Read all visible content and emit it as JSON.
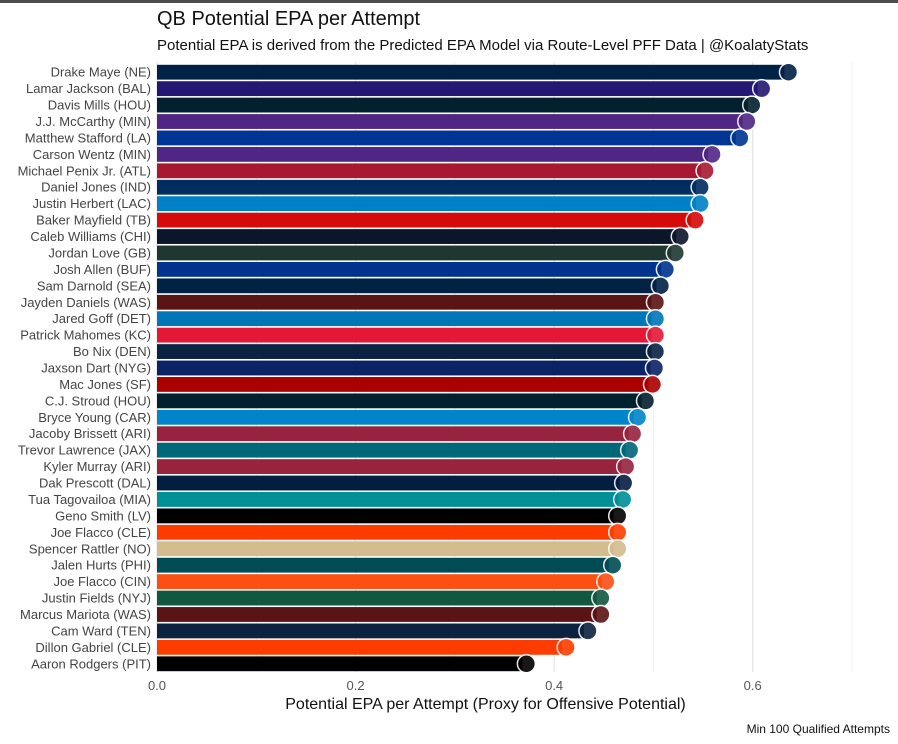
{
  "chart_data": {
    "type": "bar",
    "orientation": "horizontal",
    "title": "QB Potential EPA per Attempt",
    "subtitle": "Potential EPA is derived from the Predicted EPA Model via Route-Level PFF Data | @KoalatyStats",
    "xlabel": "Potential EPA per Attempt (Proxy for Offensive Potential)",
    "ylabel": "",
    "caption": "Min 100 Qualified Attempts",
    "xlim": [
      0,
      0.7
    ],
    "xticks": [
      "0.0",
      "0.2",
      "0.4",
      "0.6"
    ],
    "grid": true,
    "legend": "none",
    "categories": [
      "Drake Maye (NE)",
      "Lamar Jackson (BAL)",
      "Davis Mills (HOU)",
      "J.J. McCarthy (MIN)",
      "Matthew Stafford (LA)",
      "Carson Wentz (MIN)",
      "Michael Penix Jr. (ATL)",
      "Daniel Jones (IND)",
      "Justin Herbert (LAC)",
      "Baker Mayfield (TB)",
      "Caleb Williams (CHI)",
      "Jordan Love (GB)",
      "Josh Allen (BUF)",
      "Sam Darnold (SEA)",
      "Jayden Daniels (WAS)",
      "Jared Goff (DET)",
      "Patrick Mahomes (KC)",
      "Bo Nix (DEN)",
      "Jaxson Dart (NYG)",
      "Mac Jones (SF)",
      "C.J. Stroud (HOU)",
      "Bryce Young (CAR)",
      "Jacoby Brissett (ARI)",
      "Trevor Lawrence (JAX)",
      "Kyler Murray (ARI)",
      "Dak Prescott (DAL)",
      "Tua Tagovailoa (MIA)",
      "Geno Smith (LV)",
      "Joe Flacco (CLE)",
      "Spencer Rattler (NO)",
      "Jalen Hurts (PHI)",
      "Joe Flacco (CIN)",
      "Justin Fields (NYJ)",
      "Marcus Mariota (WAS)",
      "Cam Ward (TEN)",
      "Dillon Gabriel (CLE)",
      "Aaron Rodgers (PIT)"
    ],
    "values": [
      0.632,
      0.605,
      0.595,
      0.59,
      0.583,
      0.555,
      0.548,
      0.543,
      0.543,
      0.538,
      0.523,
      0.518,
      0.508,
      0.503,
      0.498,
      0.498,
      0.498,
      0.498,
      0.497,
      0.495,
      0.488,
      0.48,
      0.475,
      0.472,
      0.468,
      0.466,
      0.465,
      0.46,
      0.46,
      0.46,
      0.455,
      0.448,
      0.443,
      0.443,
      0.43,
      0.408,
      0.368
    ],
    "bar_colors": [
      "#002244",
      "#241773",
      "#03202F",
      "#4F2683",
      "#003594",
      "#4F2683",
      "#A71930",
      "#002C5F",
      "#0080C6",
      "#D50A0A",
      "#0B162A",
      "#203731",
      "#00338D",
      "#002244",
      "#5A1414",
      "#0076B6",
      "#E31837",
      "#0A2343",
      "#0B2265",
      "#AA0000",
      "#03202F",
      "#0085CA",
      "#97233F",
      "#006778",
      "#97233F",
      "#041E42",
      "#008E97",
      "#000000",
      "#FF3C00",
      "#D3BC8D",
      "#004C54",
      "#FB4F14",
      "#125740",
      "#5A1414",
      "#0C2340",
      "#FF3C00",
      "#000000"
    ]
  }
}
